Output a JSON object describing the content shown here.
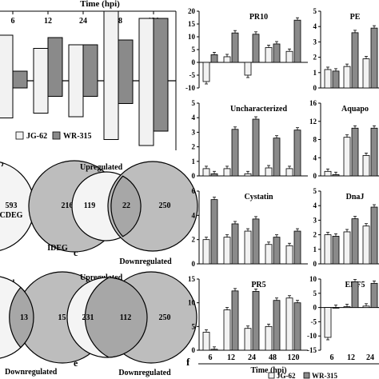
{
  "colors": {
    "jg62": "#f2f2f2",
    "wr315": "#8a8a8a",
    "venn_left": "#f4f4f4",
    "venn_right": "#bdbdbd",
    "venn_overlap": "#a7a7a7",
    "stroke": "#000000"
  },
  "chart_data": [
    {
      "type": "bar",
      "id": "top-left-deg-counts",
      "title": "",
      "xlabel": "Time (hpi)",
      "ylabel": "",
      "x": [
        "6",
        "12",
        "24",
        "48",
        "120"
      ],
      "series": [
        {
          "name": "JG-62",
          "values": [
            190,
            135,
            150,
            290,
            260
          ]
        },
        {
          "name": "WR-315",
          "values": [
            40,
            180,
            150,
            170,
            260
          ]
        }
      ],
      "series_below_axis": [
        {
          "name": "JG-62",
          "values": [
            155,
            135,
            150,
            245,
            270
          ]
        },
        {
          "name": "WR-315",
          "values": [
            30,
            65,
            65,
            95,
            210
          ]
        }
      ],
      "legend": [
        "JG-62",
        "WR-315"
      ],
      "legend_position": "bottom"
    },
    {
      "type": "venn",
      "id": "venn-row1-left",
      "left_value": "",
      "overlap_value": "593",
      "overlap_extra": "CDEG",
      "right_value": "216",
      "bottom_label": "IDEG",
      "top_label": "",
      "panel_letter": ""
    },
    {
      "type": "venn",
      "id": "venn-row1-right",
      "left_value": "119",
      "overlap_value": "22",
      "right_value": "250",
      "top_label": "Upregulated",
      "bottom_label": "Downregulated",
      "panel_letter": "c"
    },
    {
      "type": "venn",
      "id": "venn-row2-left",
      "left_value": "",
      "overlap_value": "13",
      "right_value": "151",
      "top_label": "ated",
      "bottom_label": "Downregulated",
      "panel_letter": ""
    },
    {
      "type": "venn",
      "id": "venn-row2-right",
      "left_value": "231",
      "overlap_value": "112",
      "right_value": "250",
      "top_label": "Upregulated",
      "bottom_label": "Downregulated",
      "panel_letter": "e"
    },
    {
      "type": "bar",
      "id": "qpcr-panels",
      "panel_letter": "f",
      "xlabel": "Time (hpi)",
      "legend": [
        "JG-62",
        "WR-315"
      ],
      "categories": [
        "6",
        "12",
        "24",
        "48",
        "120"
      ],
      "panels": [
        {
          "title": "PR10",
          "ticks": [
            "20",
            "15",
            "10",
            "5",
            "0",
            "-5",
            "-10"
          ],
          "ylim": [
            -10,
            20
          ],
          "series": [
            {
              "name": "JG-62",
              "values": [
                -7.5,
                2.2,
                -5.0,
                5.8,
                4.3
              ]
            },
            {
              "name": "WR-315",
              "values": [
                3.0,
                11.5,
                11.0,
                7.2,
                16.5
              ]
            }
          ]
        },
        {
          "title": "PE",
          "ticks": [
            "5",
            "4",
            "3",
            "2",
            "1",
            "0"
          ],
          "ylim": [
            0,
            5
          ],
          "series": [
            {
              "name": "JG-62",
              "values": [
                1.2,
                1.4,
                1.9
              ]
            },
            {
              "name": "WR-315",
              "values": [
                1.1,
                3.6,
                3.9
              ]
            }
          ]
        },
        {
          "title": "Uncharacterized",
          "ticks": [
            "5",
            "4",
            "3",
            "2",
            "1",
            "0"
          ],
          "ylim": [
            0,
            5
          ],
          "series": [
            {
              "name": "JG-62",
              "values": [
                0.5,
                0.5,
                0.15,
                0.55,
                0.5
              ]
            },
            {
              "name": "WR-315",
              "values": [
                0.15,
                3.2,
                3.9,
                2.6,
                3.15
              ]
            }
          ]
        },
        {
          "title": "Aquapo",
          "ticks": [
            "16",
            "12",
            "8",
            "4",
            "0"
          ],
          "ylim": [
            0,
            16
          ],
          "series": [
            {
              "name": "JG-62",
              "values": [
                1.0,
                8.5,
                4.5
              ]
            },
            {
              "name": "WR-315",
              "values": [
                0.3,
                10.5,
                10.5
              ]
            }
          ]
        },
        {
          "title": "Cystatin",
          "ticks": [
            "6",
            "4",
            "2",
            "0"
          ],
          "ylim": [
            0,
            6
          ],
          "series": [
            {
              "name": "JG-62",
              "values": [
                2.0,
                2.2,
                2.7,
                1.6,
                1.5
              ]
            },
            {
              "name": "WR-315",
              "values": [
                5.3,
                3.3,
                3.7,
                2.2,
                2.7
              ]
            }
          ]
        },
        {
          "title": "DnaJ",
          "ticks": [
            "5",
            "4",
            "3",
            "2",
            "1",
            "0"
          ],
          "ylim": [
            0,
            5
          ],
          "series": [
            {
              "name": "JG-62",
              "values": [
                2.0,
                2.2,
                2.6
              ]
            },
            {
              "name": "WR-315",
              "values": [
                1.9,
                3.1,
                3.9
              ]
            }
          ]
        },
        {
          "title": "PR5",
          "ticks": [
            "15",
            "10",
            "5",
            "0"
          ],
          "ylim": [
            0,
            15
          ],
          "series": [
            {
              "name": "JG-62",
              "values": [
                3.8,
                8.5,
                4.6,
                5.0,
                11.0
              ]
            },
            {
              "name": "WR-315",
              "values": [
                0.2,
                12.5,
                12.4,
                10.5,
                10.0
              ]
            }
          ]
        },
        {
          "title": "ERF5",
          "ticks": [
            "10",
            "5",
            "0",
            "-5",
            "-10",
            "-15"
          ],
          "ylim": [
            -15,
            10
          ],
          "series": [
            {
              "name": "JG-62",
              "values": [
                -10.5,
                0.3,
                0.5
              ]
            },
            {
              "name": "WR-315",
              "values": [
                0.0,
                9.0,
                8.5
              ]
            }
          ]
        }
      ]
    }
  ]
}
